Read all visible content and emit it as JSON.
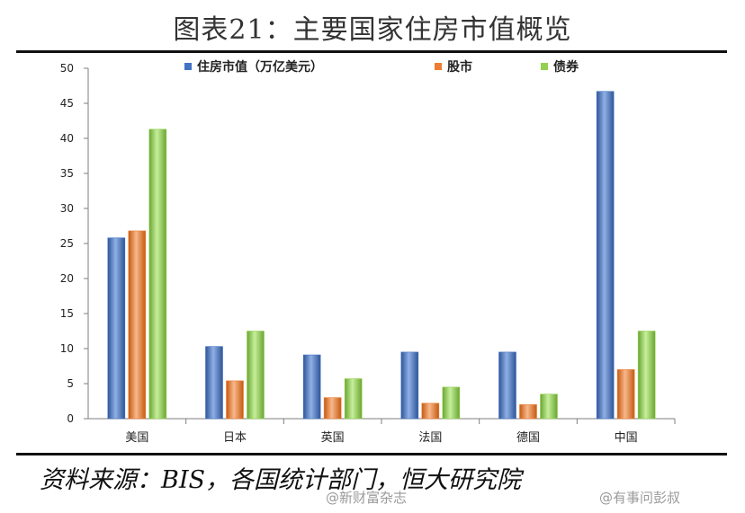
{
  "title": "图表21：主要国家住房市值概览",
  "source": "资料来源：BIS，各国统计部门，恒大研究院",
  "watermarks": [
    "@新财富杂志",
    "@有事问彭叔"
  ],
  "colors": {
    "housing": "#4472C4",
    "stock": "#ED7D31",
    "bond": "#92D050",
    "axis": "#7f7f7f"
  },
  "chart_data": {
    "type": "bar",
    "categories": [
      "美国",
      "日本",
      "英国",
      "法国",
      "德国",
      "中国"
    ],
    "series": [
      {
        "name": "住房市值（万亿美元）",
        "values": [
          25.8,
          10.3,
          9.1,
          9.5,
          9.5,
          46.7
        ]
      },
      {
        "name": "股市",
        "values": [
          26.8,
          5.4,
          3.0,
          2.2,
          2.0,
          7.0
        ]
      },
      {
        "name": "债券",
        "values": [
          41.3,
          12.5,
          5.7,
          4.5,
          3.5,
          12.5
        ]
      }
    ],
    "ylim": [
      0,
      50
    ],
    "yticks": [
      0,
      5,
      10,
      15,
      20,
      25,
      30,
      35,
      40,
      45,
      50
    ],
    "grid": false,
    "legend_position": "top-center"
  }
}
